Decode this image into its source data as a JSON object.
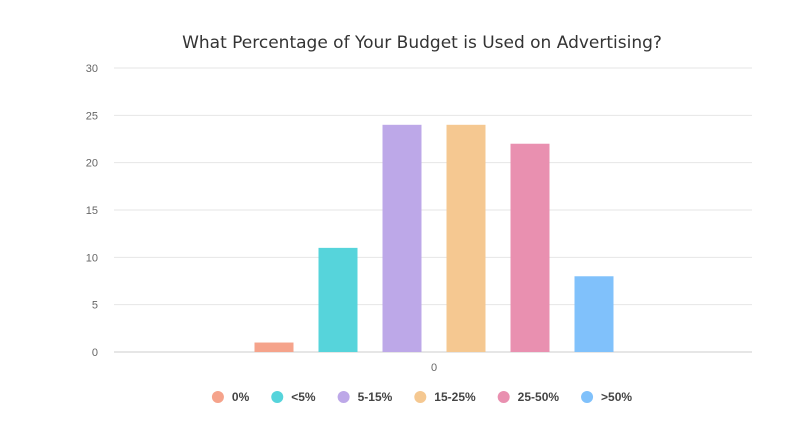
{
  "chart_data": {
    "type": "bar",
    "title": "What Percentage of Your Budget is Used on Advertising?",
    "xlabel": "",
    "ylabel": "",
    "x_tick_labels": [
      "0"
    ],
    "ylim": [
      0,
      30
    ],
    "y_ticks": [
      0,
      5,
      10,
      15,
      20,
      25,
      30
    ],
    "grid": true,
    "legend_position": "bottom-center",
    "series": [
      {
        "name": "0%",
        "values": [
          1
        ],
        "color": "#F5A38B"
      },
      {
        "name": "<5%",
        "values": [
          11
        ],
        "color": "#56D4DB"
      },
      {
        "name": "5-15%",
        "values": [
          24
        ],
        "color": "#BDA8E8"
      },
      {
        "name": "15-25%",
        "values": [
          24
        ],
        "color": "#F5C891"
      },
      {
        "name": "25-50%",
        "values": [
          22
        ],
        "color": "#E990B0"
      },
      {
        "name": ">50%",
        "values": [
          8
        ],
        "color": "#80C1FB"
      }
    ]
  }
}
